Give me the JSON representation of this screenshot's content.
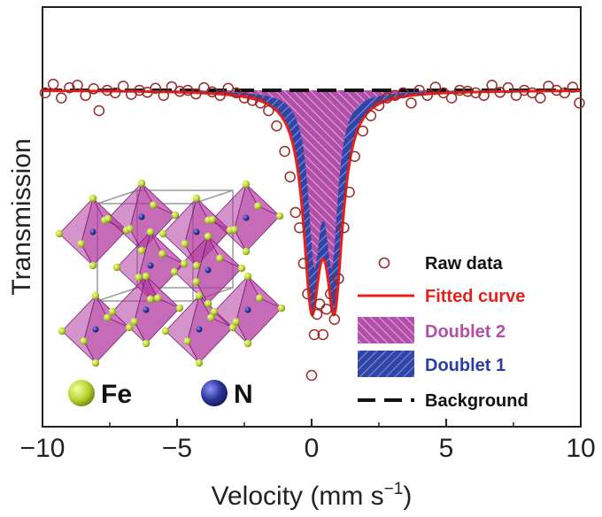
{
  "chart_data": {
    "type": "scatter",
    "title": "",
    "xlabel": "Velocity (mm s",
    "xlabel_sup": "−1",
    "xlabel_close": ")",
    "ylabel": "Transmission",
    "xlim": [
      -10,
      10
    ],
    "ylim": [
      0.0,
      1.0
    ],
    "x_ticks": [
      -10,
      -5,
      0,
      5,
      10
    ],
    "x_tick_labels": [
      "−10",
      "−5",
      "0",
      "5",
      "10"
    ],
    "y_ticks_shown": false,
    "grid": false,
    "legend_position": "lower-right",
    "legend": [
      {
        "label": "Raw data",
        "style": "open-circle",
        "color": "#9a2a2a"
      },
      {
        "label": "Fitted curve",
        "style": "solid-line",
        "color": "#e8201c"
      },
      {
        "label": "Doublet 2",
        "style": "hatched-fill",
        "color": "#c066b4"
      },
      {
        "label": "Doublet 1",
        "style": "hatched-fill",
        "color": "#3145a6"
      },
      {
        "label": "Background",
        "style": "dashed-line",
        "color": "#111111"
      }
    ],
    "baseline": 1.0,
    "doublet1": {
      "name": "Doublet 1",
      "peaks": [
        {
          "center": 0.0,
          "depth": 0.44,
          "width": 0.75
        },
        {
          "center": 0.85,
          "depth": 0.44,
          "width": 0.75
        }
      ]
    },
    "doublet2": {
      "name": "Doublet 2",
      "peaks": [
        {
          "center": 0.1,
          "depth": 0.35,
          "width": 0.55
        },
        {
          "center": 0.75,
          "depth": 0.35,
          "width": 0.55
        }
      ]
    },
    "raw_data": [
      {
        "x": -9.9,
        "y": 0.995
      },
      {
        "x": -9.6,
        "y": 1.012
      },
      {
        "x": -9.3,
        "y": 0.985
      },
      {
        "x": -9.0,
        "y": 1.005
      },
      {
        "x": -8.7,
        "y": 1.01
      },
      {
        "x": -8.4,
        "y": 0.99
      },
      {
        "x": -8.1,
        "y": 1.003
      },
      {
        "x": -7.9,
        "y": 0.96
      },
      {
        "x": -7.6,
        "y": 1.0
      },
      {
        "x": -7.3,
        "y": 0.995
      },
      {
        "x": -7.0,
        "y": 1.008
      },
      {
        "x": -6.7,
        "y": 0.992
      },
      {
        "x": -6.4,
        "y": 1.0
      },
      {
        "x": -6.1,
        "y": 0.996
      },
      {
        "x": -5.8,
        "y": 1.004
      },
      {
        "x": -5.5,
        "y": 0.99
      },
      {
        "x": -5.2,
        "y": 1.007
      },
      {
        "x": -4.9,
        "y": 0.998
      },
      {
        "x": -4.6,
        "y": 1.0
      },
      {
        "x": -4.3,
        "y": 0.993
      },
      {
        "x": -4.0,
        "y": 1.005
      },
      {
        "x": -3.7,
        "y": 0.997
      },
      {
        "x": -3.4,
        "y": 0.99
      },
      {
        "x": -3.1,
        "y": 1.004
      },
      {
        "x": -2.8,
        "y": 0.995
      },
      {
        "x": -2.5,
        "y": 0.985
      },
      {
        "x": -2.2,
        "y": 0.98
      },
      {
        "x": -1.9,
        "y": 0.975
      },
      {
        "x": -1.6,
        "y": 0.96
      },
      {
        "x": -1.3,
        "y": 0.93
      },
      {
        "x": -1.0,
        "y": 0.88
      },
      {
        "x": -0.8,
        "y": 0.83
      },
      {
        "x": -0.6,
        "y": 0.76
      },
      {
        "x": -0.45,
        "y": 0.73
      },
      {
        "x": -0.3,
        "y": 0.66
      },
      {
        "x": -0.15,
        "y": 0.6
      },
      {
        "x": 0.0,
        "y": 0.44
      },
      {
        "x": 0.1,
        "y": 0.52
      },
      {
        "x": 0.2,
        "y": 0.56
      },
      {
        "x": 0.3,
        "y": 0.58
      },
      {
        "x": 0.42,
        "y": 0.52
      },
      {
        "x": 0.55,
        "y": 0.57
      },
      {
        "x": 0.7,
        "y": 0.6
      },
      {
        "x": 0.85,
        "y": 0.55
      },
      {
        "x": 1.0,
        "y": 0.63
      },
      {
        "x": 1.2,
        "y": 0.73
      },
      {
        "x": 1.4,
        "y": 0.8
      },
      {
        "x": 1.6,
        "y": 0.87
      },
      {
        "x": 1.9,
        "y": 0.92
      },
      {
        "x": 2.2,
        "y": 0.95
      },
      {
        "x": 2.5,
        "y": 0.97
      },
      {
        "x": 2.8,
        "y": 0.985
      },
      {
        "x": 3.1,
        "y": 0.99
      },
      {
        "x": 3.4,
        "y": 0.995
      },
      {
        "x": 3.7,
        "y": 0.975
      },
      {
        "x": 4.0,
        "y": 1.0
      },
      {
        "x": 4.3,
        "y": 0.99
      },
      {
        "x": 4.6,
        "y": 1.006
      },
      {
        "x": 4.9,
        "y": 0.995
      },
      {
        "x": 5.2,
        "y": 0.985
      },
      {
        "x": 5.5,
        "y": 1.0
      },
      {
        "x": 5.8,
        "y": 0.998
      },
      {
        "x": 6.1,
        "y": 0.995
      },
      {
        "x": 6.4,
        "y": 0.99
      },
      {
        "x": 6.7,
        "y": 1.01
      },
      {
        "x": 7.0,
        "y": 0.996
      },
      {
        "x": 7.3,
        "y": 1.005
      },
      {
        "x": 7.6,
        "y": 0.99
      },
      {
        "x": 7.9,
        "y": 1.0
      },
      {
        "x": 8.2,
        "y": 0.995
      },
      {
        "x": 8.5,
        "y": 0.985
      },
      {
        "x": 8.8,
        "y": 1.008
      },
      {
        "x": 9.1,
        "y": 1.0
      },
      {
        "x": 9.4,
        "y": 0.995
      },
      {
        "x": 9.7,
        "y": 1.006
      },
      {
        "x": 9.95,
        "y": 0.975
      }
    ]
  },
  "inset": {
    "structure_colors": {
      "octahedron": "#b23aa0",
      "fe_atom": "#b9d432",
      "n_atom": "#3a3fa5"
    },
    "legend": [
      {
        "label": "Fe",
        "color": "#b9d432"
      },
      {
        "label": "N",
        "color": "#2a3496"
      }
    ]
  }
}
